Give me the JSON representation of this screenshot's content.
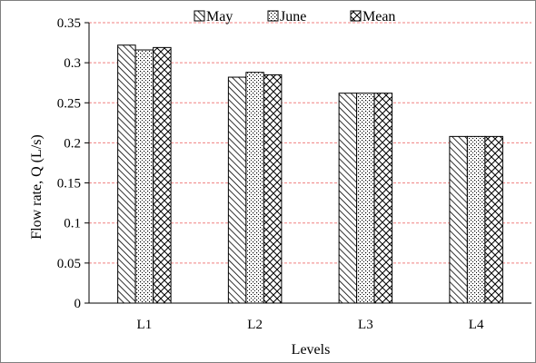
{
  "chart_data": {
    "type": "bar",
    "categories": [
      "L1",
      "L2",
      "L3",
      "L4"
    ],
    "series": [
      {
        "name": "May",
        "values": [
          0.322,
          0.282,
          0.262,
          0.208
        ],
        "pattern": "diagonal-hatch"
      },
      {
        "name": "June",
        "values": [
          0.316,
          0.288,
          0.262,
          0.208
        ],
        "pattern": "dots"
      },
      {
        "name": "Mean",
        "values": [
          0.319,
          0.285,
          0.262,
          0.208
        ],
        "pattern": "cross-hatch"
      }
    ],
    "title": "",
    "xlabel": "Levels",
    "ylabel": "Flow rate, Q (L/s)",
    "ylim": [
      0,
      0.35
    ],
    "yticks": [
      0,
      0.05,
      0.1,
      0.15,
      0.2,
      0.25,
      0.3,
      0.35
    ],
    "ytick_labels": [
      "0",
      "0.05",
      "0.1",
      "0.15",
      "0.2",
      "0.25",
      "0.3",
      "0.35"
    ],
    "grid": true,
    "grid_color": "#f08080",
    "legend_position": "top"
  }
}
